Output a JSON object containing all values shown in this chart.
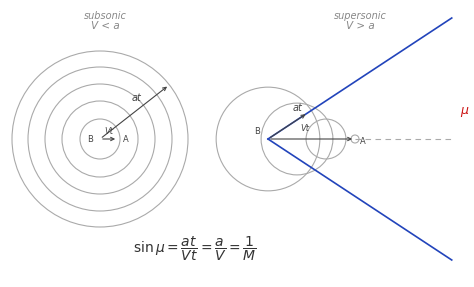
{
  "bg_color": "#ffffff",
  "subsonic_label": "subsonic",
  "subsonic_sublabel": "V < a",
  "supersonic_label": "supersonic",
  "supersonic_sublabel": "V > a",
  "circle_color": "#aaaaaa",
  "arrow_color": "#444444",
  "line_color": "#2244bb",
  "dashed_color": "#aaaaaa",
  "arc_color": "#cc1111",
  "text_color": "#888888",
  "formula_color": "#333333",
  "mu_color": "#cc1111"
}
